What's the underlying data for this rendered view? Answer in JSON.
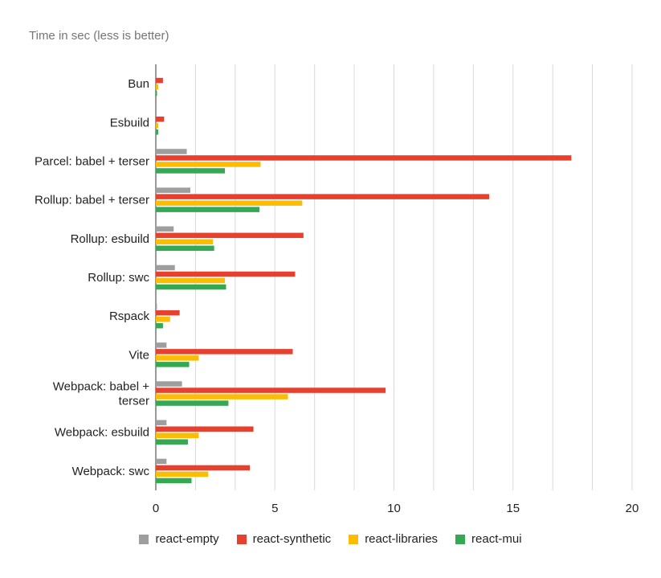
{
  "chart_data": {
    "type": "bar",
    "orientation": "horizontal",
    "title": "Time in sec (less is better)",
    "categories": [
      [
        "Bun"
      ],
      [
        "Esbuild"
      ],
      [
        "Parcel: babel + terser"
      ],
      [
        "Rollup: babel + terser"
      ],
      [
        "Rollup: esbuild"
      ],
      [
        "Rollup: swc"
      ],
      [
        "Rspack"
      ],
      [
        "Vite"
      ],
      [
        "Webpack: babel +",
        "terser"
      ],
      [
        "Webpack: esbuild"
      ],
      [
        "Webpack: swc"
      ]
    ],
    "series": [
      {
        "name": "react-empty",
        "color": "#9e9e9e",
        "values": [
          0.0,
          0.0,
          1.3,
          1.45,
          0.75,
          0.8,
          0.05,
          0.45,
          1.1,
          0.45,
          0.45
        ]
      },
      {
        "name": "react-synthetic",
        "color": "#e8402f",
        "values": [
          0.3,
          0.35,
          17.45,
          14.0,
          6.2,
          5.85,
          1.0,
          5.75,
          9.65,
          4.1,
          3.95
        ]
      },
      {
        "name": "react-libraries",
        "color": "#fbbc04",
        "values": [
          0.1,
          0.1,
          4.4,
          6.15,
          2.4,
          2.9,
          0.6,
          1.8,
          5.55,
          1.8,
          2.2
        ]
      },
      {
        "name": "react-mui",
        "color": "#34a853",
        "values": [
          0.05,
          0.1,
          2.9,
          4.35,
          2.45,
          2.95,
          0.3,
          1.4,
          3.05,
          1.35,
          1.5
        ]
      }
    ],
    "xlim": [
      0,
      20
    ],
    "xticks": [
      0,
      5,
      10,
      15,
      20
    ],
    "grid": true,
    "legend": "bottom"
  }
}
